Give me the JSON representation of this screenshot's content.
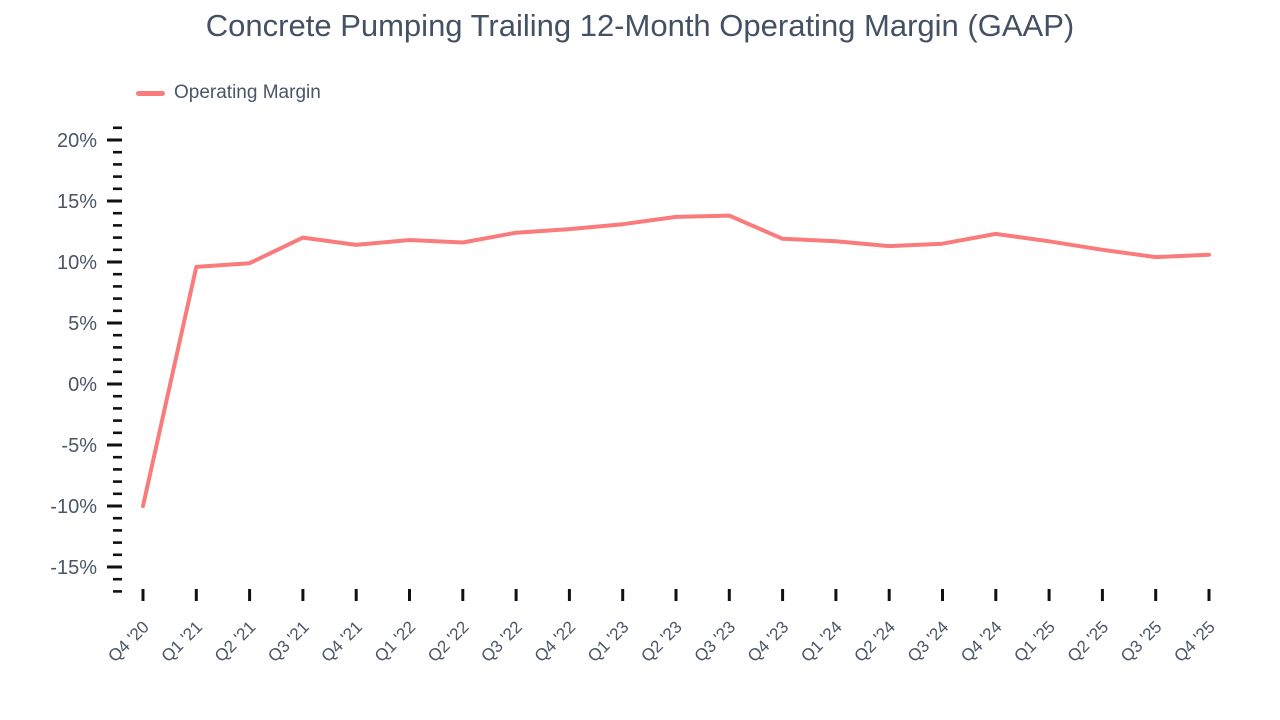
{
  "page": {
    "background": "#ffffff"
  },
  "header": {
    "title": "Concrete Pumping Trailing 12-Month Operating Margin (GAAP)"
  },
  "legend": {
    "items": [
      {
        "label": "Operating Margin",
        "color": "#F97B7C",
        "swatch": "line"
      }
    ]
  },
  "colors": {
    "line": "#F97B7C",
    "text": "#4A5568",
    "title_text": "#445064",
    "tick": "#111111",
    "background": "#ffffff"
  },
  "chart_data": {
    "type": "line",
    "title": "Concrete Pumping Trailing 12-Month Operating Margin (GAAP)",
    "xlabel": "",
    "ylabel": "",
    "categories": [
      "Q4 '20",
      "Q1 '21",
      "Q2 '21",
      "Q3 '21",
      "Q4 '21",
      "Q1 '22",
      "Q2 '22",
      "Q3 '22",
      "Q4 '22",
      "Q1 '23",
      "Q2 '23",
      "Q3 '23",
      "Q4 '23",
      "Q1 '24",
      "Q2 '24",
      "Q3 '24",
      "Q4 '24",
      "Q1 '25",
      "Q2 '25",
      "Q3 '25",
      "Q4 '25"
    ],
    "series": [
      {
        "name": "Operating Margin",
        "color": "#F97B7C",
        "values": [
          -10.0,
          9.6,
          9.9,
          12.0,
          11.4,
          11.8,
          11.6,
          12.4,
          12.7,
          13.1,
          13.7,
          13.8,
          11.9,
          11.7,
          11.3,
          11.5,
          12.3,
          11.7,
          11.0,
          10.4,
          10.6
        ]
      }
    ],
    "unit": "%",
    "ylim": [
      -17.5,
      21.5
    ],
    "y_major_ticks": [
      20,
      15,
      10,
      5,
      0,
      -5,
      -10,
      -15
    ],
    "y_major_tick_labels": [
      "20%",
      "15%",
      "10%",
      "5%",
      "0%",
      "-5%",
      "-10%",
      "-15%"
    ],
    "y_minor_tick_step": 1,
    "y_minor_tick_range": [
      -17,
      21
    ],
    "grid": false,
    "legend_position": "top-left",
    "x_tick_label_rotation": -45
  }
}
